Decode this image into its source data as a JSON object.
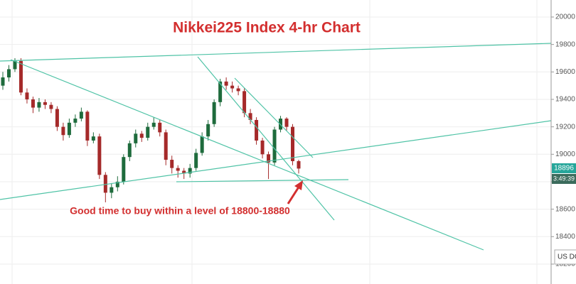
{
  "chart_data": {
    "type": "candlestick",
    "title": "Nikkei225 Index 4-hr Chart",
    "annotation": "Good time to buy within a level of 18800-18880",
    "countdown": "3:49:39",
    "currency_button": "US DC",
    "up_color": "#1e6b3c",
    "down_color": "#a52a2a",
    "open": [
      19500,
      19560,
      19620,
      19680,
      19450,
      19400,
      19340,
      19380,
      19360,
      19330,
      19200,
      19140,
      19230,
      19260,
      19310,
      19100,
      19130,
      18850,
      18720,
      18760,
      18800,
      18980,
      19080,
      19150,
      19120,
      19200,
      19230,
      19160,
      18960,
      18900,
      18880,
      18860,
      18900,
      19010,
      19130,
      19220,
      19380,
      19530,
      19500,
      19480,
      19460,
      19300,
      19250,
      19100,
      19000,
      18940,
      19180,
      19260,
      19200,
      18950
    ],
    "high": [
      19600,
      19650,
      19700,
      19700,
      19480,
      19420,
      19410,
      19400,
      19380,
      19350,
      19230,
      19260,
      19290,
      19340,
      19320,
      19160,
      19150,
      18870,
      18790,
      18840,
      19000,
      19100,
      19180,
      19170,
      19230,
      19270,
      19250,
      19180,
      18990,
      18920,
      18900,
      18930,
      19040,
      19160,
      19250,
      19400,
      19550,
      19560,
      19530,
      19500,
      19480,
      19330,
      19270,
      19120,
      19020,
      19200,
      19280,
      19270,
      19220,
      18960
    ],
    "low": [
      19470,
      19530,
      19600,
      19430,
      19370,
      19300,
      19310,
      19330,
      19300,
      19170,
      19100,
      19120,
      19200,
      19240,
      19060,
      19080,
      18820,
      18650,
      18680,
      18730,
      18780,
      18950,
      19050,
      19090,
      19100,
      19180,
      19130,
      18920,
      18860,
      18830,
      18820,
      18830,
      18880,
      18990,
      19100,
      19200,
      19350,
      19470,
      19450,
      19430,
      19270,
      19220,
      19070,
      18970,
      18820,
      18920,
      19160,
      19170,
      18920,
      18860
    ],
    "close": [
      19560,
      19620,
      19680,
      19450,
      19400,
      19340,
      19380,
      19360,
      19330,
      19200,
      19140,
      19230,
      19260,
      19310,
      19100,
      19130,
      18850,
      18720,
      18760,
      18800,
      18980,
      19080,
      19150,
      19120,
      19200,
      19230,
      19160,
      18960,
      18900,
      18880,
      18860,
      18900,
      19010,
      19130,
      19220,
      19380,
      19530,
      19500,
      19480,
      19460,
      19300,
      19250,
      19100,
      19000,
      18940,
      19180,
      19260,
      19200,
      18950,
      18896
    ],
    "ylim": [
      18055,
      20124
    ],
    "yticks": [
      18200,
      18400,
      18600,
      18800,
      19000,
      19200,
      19400,
      19600,
      19800,
      20000
    ],
    "grid": true
  }
}
